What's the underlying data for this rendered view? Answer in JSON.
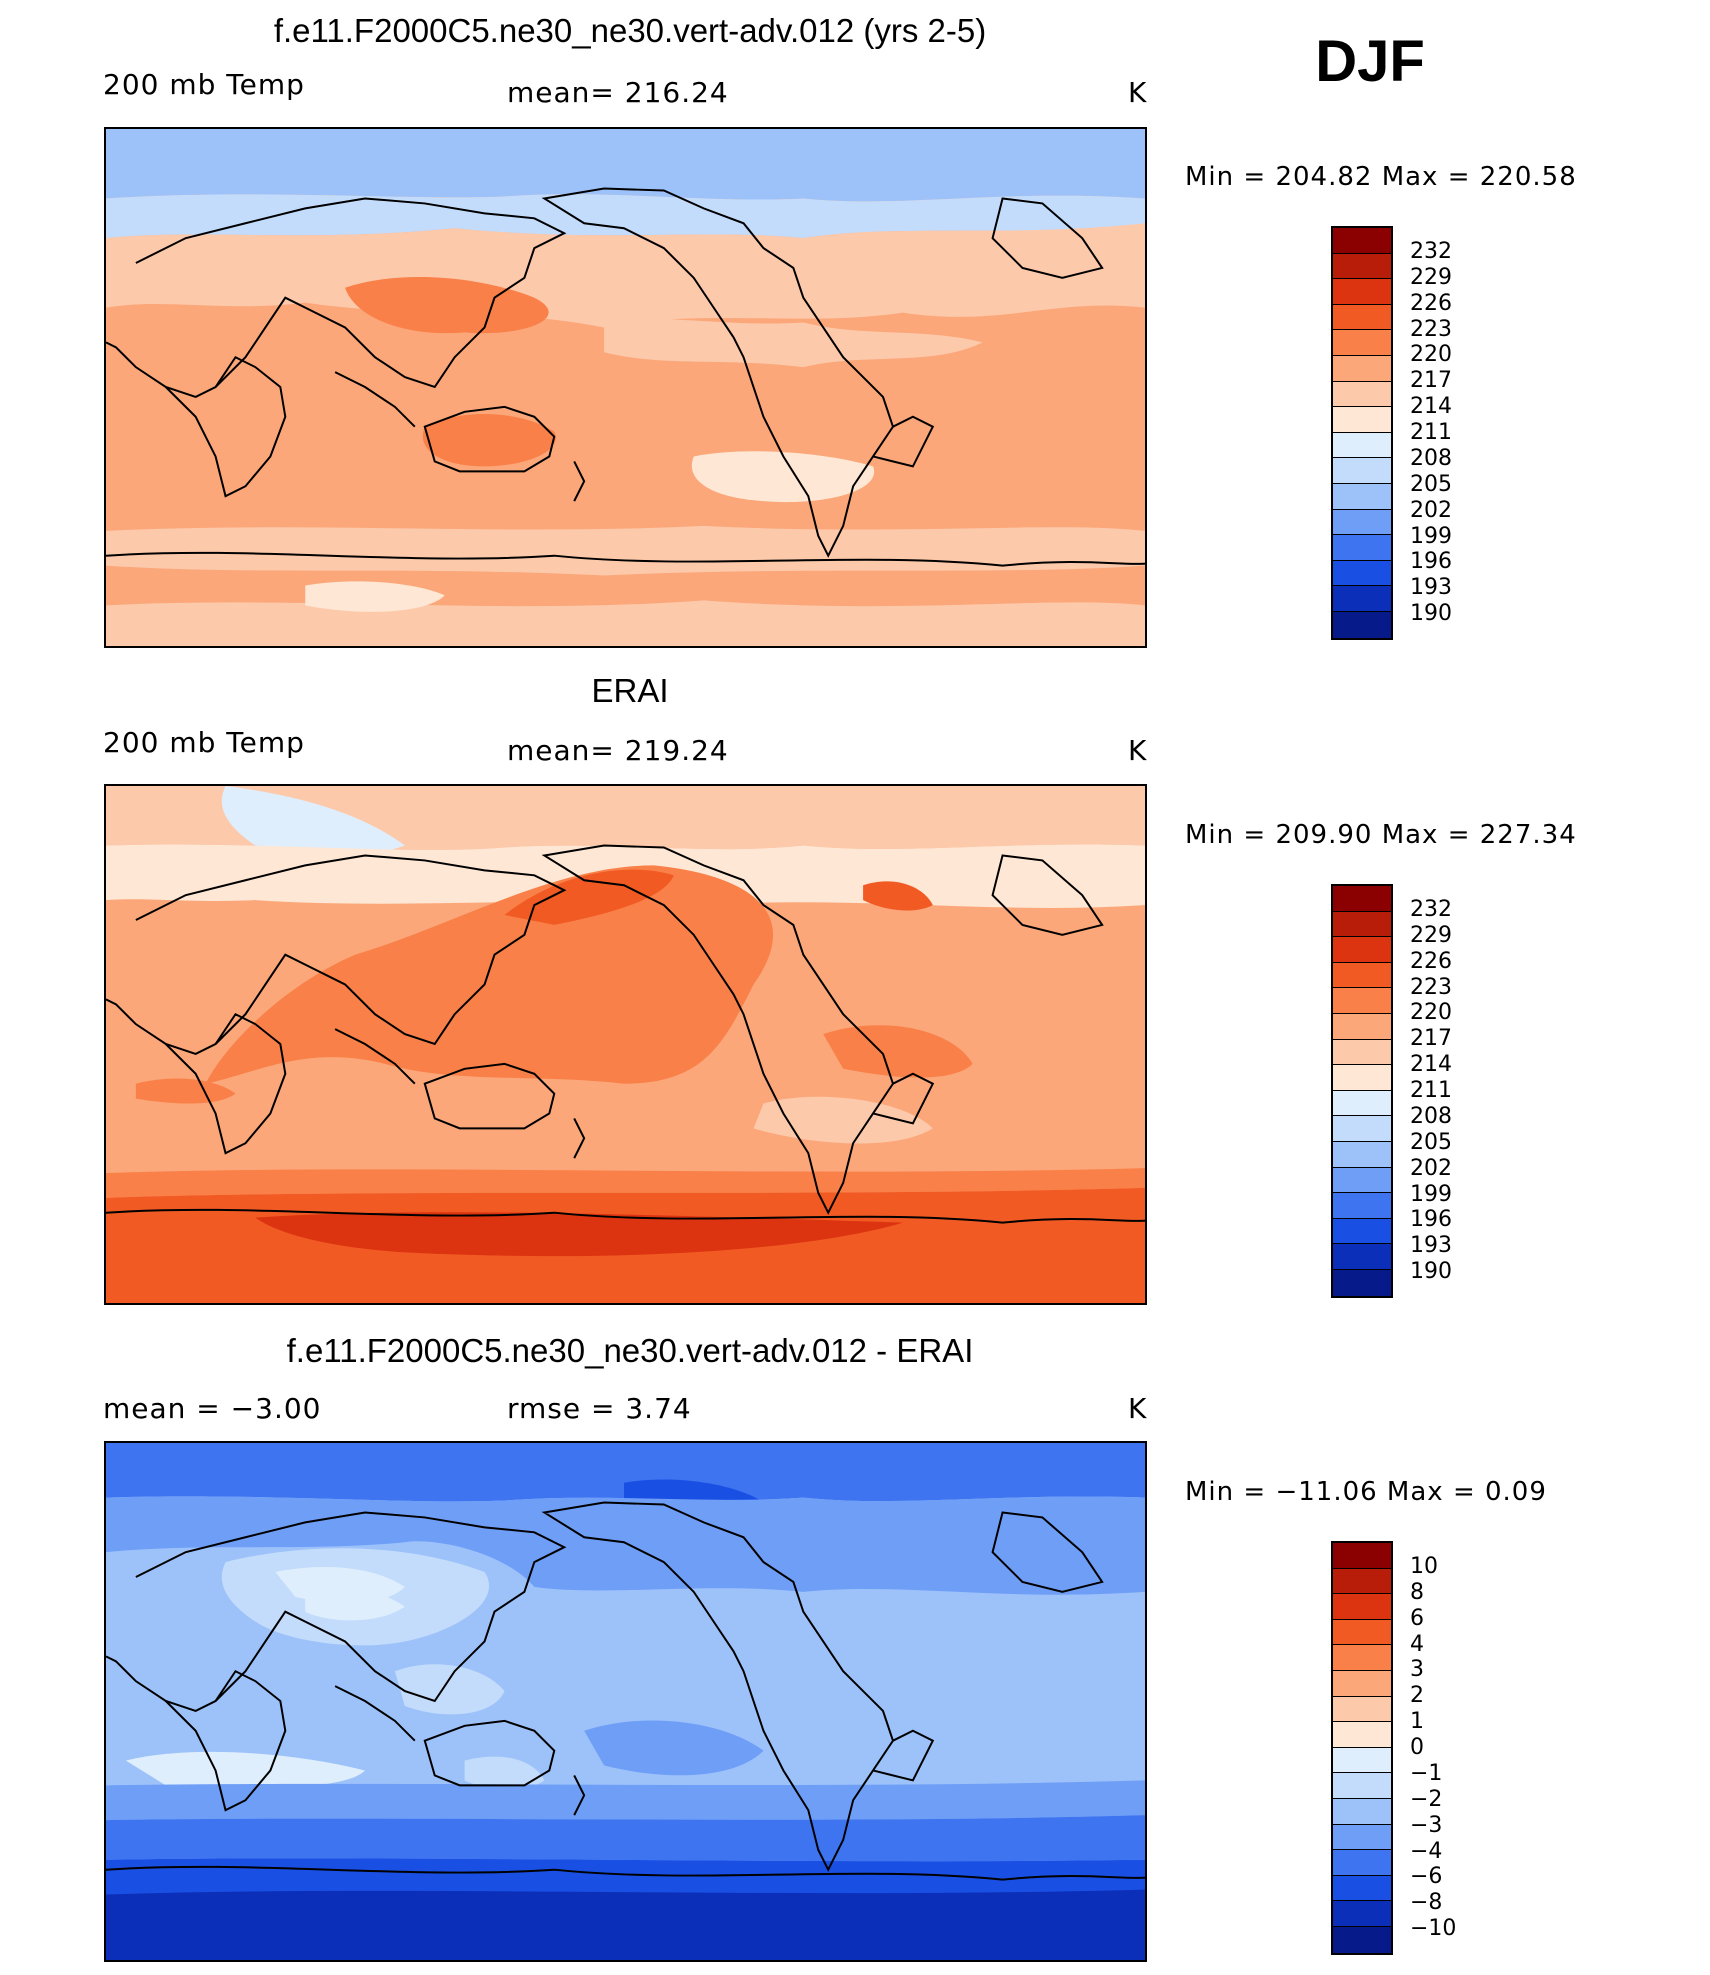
{
  "season": "DJF",
  "panels": [
    {
      "id": "model",
      "title": "f.e11.F2000C5.ne30_ne30.vert-adv.012 (yrs 2-5)",
      "left_label": "200 mb Temp",
      "center_label": "mean=  216.24",
      "units": "K",
      "minmax": "Min  =  204.82  Max  =  220.58",
      "scale": "abs"
    },
    {
      "id": "obs",
      "title": "ERAI",
      "left_label": "200 mb Temp",
      "center_label": "mean=  219.24",
      "units": "K",
      "minmax": "Min  =  209.90  Max  =  227.34",
      "scale": "abs"
    },
    {
      "id": "diff",
      "title": "f.e11.F2000C5.ne30_ne30.vert-adv.012 - ERAI",
      "left_label": "mean  =    −3.00",
      "center_label": "rmse  =      3.74",
      "units": "K",
      "minmax": "Min  =  −11.06  Max  =      0.09",
      "scale": "diff"
    }
  ],
  "colorbars": {
    "abs": {
      "labels": [
        "232",
        "229",
        "226",
        "223",
        "220",
        "217",
        "214",
        "211",
        "208",
        "205",
        "202",
        "199",
        "196",
        "193",
        "190"
      ],
      "colors": [
        "#8b0000",
        "#b81d0a",
        "#dc3410",
        "#f25a24",
        "#f98048",
        "#fba77a",
        "#fdc9ab",
        "#fee7d4",
        "#dfeefc",
        "#c3dcfb",
        "#9dc2fa",
        "#6f9ef7",
        "#3f74f0",
        "#1a4fe4",
        "#0b2fb8",
        "#061a8a"
      ]
    },
    "diff": {
      "labels": [
        "10",
        "8",
        "6",
        "4",
        "3",
        "2",
        "1",
        "0",
        "−1",
        "−2",
        "−3",
        "−4",
        "−6",
        "−8",
        "−10"
      ],
      "colors": [
        "#8b0000",
        "#b81d0a",
        "#dc3410",
        "#f25a24",
        "#f98048",
        "#fba77a",
        "#fdc9ab",
        "#fee7d4",
        "#dfeefc",
        "#c3dcfb",
        "#9dc2fa",
        "#6f9ef7",
        "#3f74f0",
        "#1a4fe4",
        "#0b2fb8",
        "#061a8a"
      ]
    }
  }
}
